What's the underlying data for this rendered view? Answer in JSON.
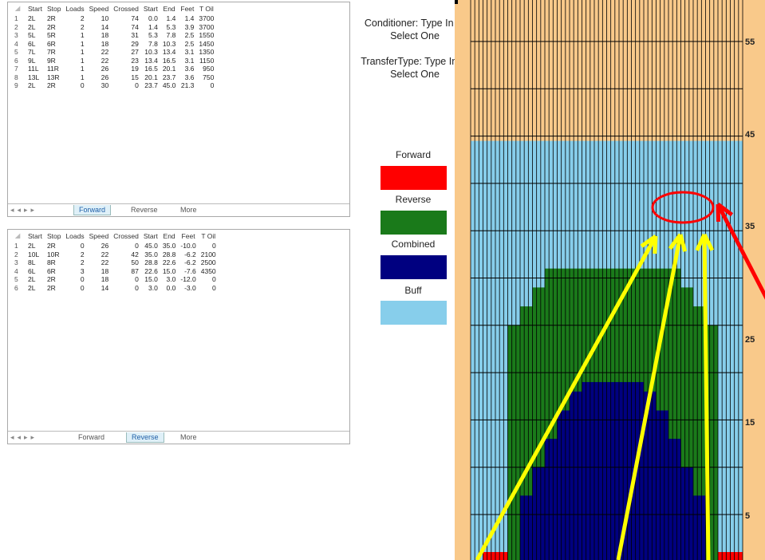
{
  "forward_sheet": {
    "headers": [
      "Start",
      "Stop",
      "Loads",
      "Speed",
      "Crossed",
      "Start",
      "End",
      "Feet",
      "T Oil"
    ],
    "rows": [
      [
        "1",
        "2L",
        "2R",
        "2",
        "10",
        "74",
        "0.0",
        "1.4",
        "1.4",
        "3700"
      ],
      [
        "2",
        "2L",
        "2R",
        "2",
        "14",
        "74",
        "1.4",
        "5.3",
        "3.9",
        "3700"
      ],
      [
        "3",
        "5L",
        "5R",
        "1",
        "18",
        "31",
        "5.3",
        "7.8",
        "2.5",
        "1550"
      ],
      [
        "4",
        "6L",
        "6R",
        "1",
        "18",
        "29",
        "7.8",
        "10.3",
        "2.5",
        "1450"
      ],
      [
        "5",
        "7L",
        "7R",
        "1",
        "22",
        "27",
        "10.3",
        "13.4",
        "3.1",
        "1350"
      ],
      [
        "6",
        "9L",
        "9R",
        "1",
        "22",
        "23",
        "13.4",
        "16.5",
        "3.1",
        "1150"
      ],
      [
        "7",
        "11L",
        "11R",
        "1",
        "26",
        "19",
        "16.5",
        "20.1",
        "3.6",
        "950"
      ],
      [
        "8",
        "13L",
        "13R",
        "1",
        "26",
        "15",
        "20.1",
        "23.7",
        "3.6",
        "750"
      ],
      [
        "9",
        "2L",
        "2R",
        "0",
        "30",
        "0",
        "23.7",
        "45.0",
        "21.3",
        "0"
      ]
    ],
    "tabs": [
      "Forward",
      "Reverse",
      "More"
    ],
    "active_tab": "Forward"
  },
  "reverse_sheet": {
    "headers": [
      "Start",
      "Stop",
      "Loads",
      "Speed",
      "Crossed",
      "Start",
      "End",
      "Feet",
      "T Oil"
    ],
    "rows": [
      [
        "1",
        "2L",
        "2R",
        "0",
        "26",
        "0",
        "45.0",
        "35.0",
        "-10.0",
        "0"
      ],
      [
        "2",
        "10L",
        "10R",
        "2",
        "22",
        "42",
        "35.0",
        "28.8",
        "-6.2",
        "2100"
      ],
      [
        "3",
        "8L",
        "8R",
        "2",
        "22",
        "50",
        "28.8",
        "22.6",
        "-6.2",
        "2500"
      ],
      [
        "4",
        "6L",
        "6R",
        "3",
        "18",
        "87",
        "22.6",
        "15.0",
        "-7.6",
        "4350"
      ],
      [
        "5",
        "2L",
        "2R",
        "0",
        "18",
        "0",
        "15.0",
        "3.0",
        "-12.0",
        "0"
      ],
      [
        "6",
        "2L",
        "2R",
        "0",
        "14",
        "0",
        "3.0",
        "0.0",
        "-3.0",
        "0"
      ]
    ],
    "tabs": [
      "Forward",
      "Reverse",
      "More"
    ],
    "active_tab": "Reverse"
  },
  "info": {
    "conditioner": "Conditioner: Type In or Select One",
    "transfer": "TransferType: Type In or Select One"
  },
  "legend": [
    {
      "label": "Forward",
      "color": "#ff0000"
    },
    {
      "label": "Reverse",
      "color": "#1a7a1a"
    },
    {
      "label": "Combined",
      "color": "#000080"
    },
    {
      "label": "Buff",
      "color": "#87ceeb"
    }
  ],
  "chart_data": {
    "type": "heatmap",
    "y_tick_labels": [
      "55",
      "45",
      "35",
      "25",
      "15",
      "5"
    ],
    "background_color": "#f9c98a",
    "buff_color": "#87ceeb",
    "forward_color": "#ff0000",
    "reverse_color": "#1a7a1a",
    "combined_color": "#000080",
    "buff_top": 45,
    "reverse_profile": [
      0,
      0,
      0,
      25,
      27,
      29,
      31,
      31,
      31,
      31,
      31,
      31,
      31,
      31,
      31,
      31,
      31,
      29,
      27,
      25,
      0,
      0
    ],
    "combined_profile": [
      0,
      0,
      0,
      0,
      7,
      10,
      13,
      16,
      18,
      19,
      19,
      19,
      19,
      19,
      18,
      16,
      13,
      10,
      7,
      0,
      0,
      0
    ],
    "forward_profile": [
      0,
      1,
      1,
      0,
      0,
      0,
      0,
      0,
      0,
      0,
      0,
      0,
      0,
      0,
      0,
      0,
      0,
      0,
      0,
      0,
      1,
      1
    ],
    "highlight_circle_color": "#ff0000",
    "arrow_color": "#ffff00",
    "red_arrow_color": "#ff0000"
  }
}
